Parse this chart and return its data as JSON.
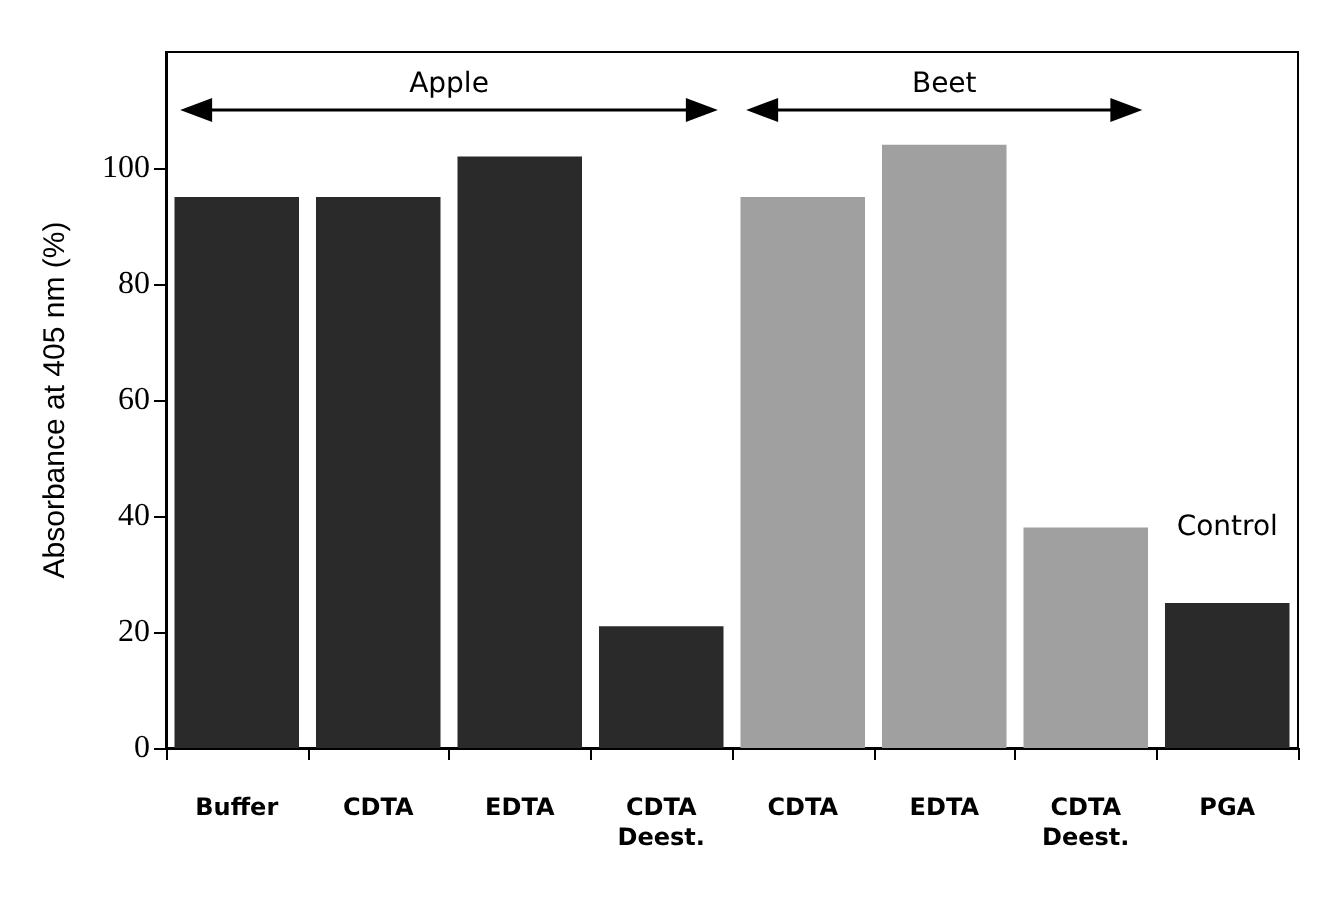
{
  "chart_data": {
    "type": "bar",
    "ylabel": "Absorbance at 405 nm (%)",
    "categories": [
      "Buffer",
      "CDTA",
      "EDTA",
      "CDTA\nDeest.",
      "CDTA",
      "EDTA",
      "CDTA\nDeest.",
      "PGA"
    ],
    "values": [
      95,
      95,
      102,
      21,
      95,
      104,
      38,
      25
    ],
    "colors": [
      "#2a2a2a",
      "#2a2a2a",
      "#2a2a2a",
      "#2a2a2a",
      "#a0a0a0",
      "#a0a0a0",
      "#a0a0a0",
      "#2a2a2a"
    ],
    "annotations": [
      "Apple",
      "Beet",
      "Control"
    ],
    "ylim": [
      0,
      120
    ],
    "yticks": [
      0,
      20,
      40,
      60,
      80,
      100
    ],
    "grid": false
  }
}
